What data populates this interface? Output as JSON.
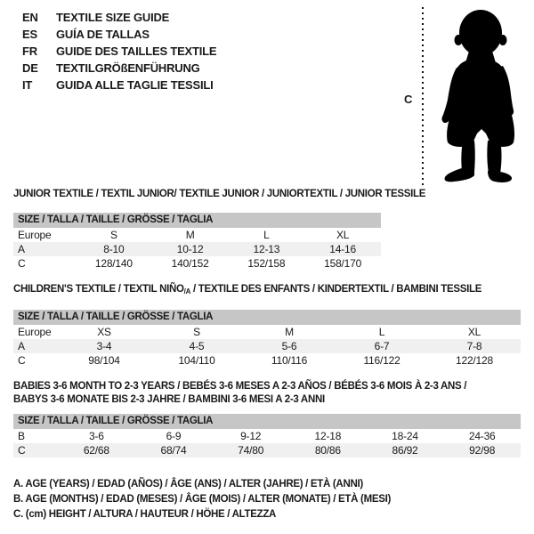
{
  "colors": {
    "header_bg": "#c6c6c6",
    "row_shaded_bg": "#f0f0f0",
    "text": "#1a1a1a",
    "silhouette": "#000000"
  },
  "languages": [
    {
      "code": "EN",
      "text": "TEXTILE SIZE GUIDE"
    },
    {
      "code": "ES",
      "text": "GUÍA DE TALLAS"
    },
    {
      "code": "FR",
      "text": "GUIDE DES TAILLES TEXTILE"
    },
    {
      "code": "DE",
      "text": "TEXTILGRÖßENFÜHRUNG"
    },
    {
      "code": "IT",
      "text": "GUIDA ALLE TAGLIE TESSILI"
    }
  ],
  "figure": {
    "height_label": "C"
  },
  "sections": [
    {
      "title_lines": [
        [
          {
            "text": "JUNIOR TEXTILE / TEXTIL JUNIOR/ TEXTILE JUNIOR / JUNIORTEXTIL / JUNIOR TESSILE"
          }
        ]
      ],
      "size_header": "SIZE / TALLA / TAILLE / GRÖSSE / TAGLIA",
      "rows": [
        {
          "label": "Europe",
          "shaded": false,
          "values": [
            "S",
            "M",
            "L",
            "XL"
          ]
        },
        {
          "label": "A",
          "shaded": true,
          "values": [
            "8-10",
            "10-12",
            "12-13",
            "14-16"
          ]
        },
        {
          "label": "C",
          "shaded": false,
          "values": [
            "128/140",
            "140/152",
            "152/158",
            "158/170"
          ]
        }
      ]
    },
    {
      "title_lines": [
        [
          {
            "text": "CHILDREN'S TEXTILE / TEXTIL NIÑO"
          },
          {
            "text": "/A",
            "sub": true
          },
          {
            "text": " / TEXTILE DES ENFANTS / KINDERTEXTIL / BAMBINI TESSILE"
          }
        ]
      ],
      "size_header": "SIZE / TALLA / TAILLE / GRÖSSE / TAGLIA",
      "rows": [
        {
          "label": "Europe",
          "shaded": false,
          "values": [
            "XS",
            "S",
            "M",
            "L",
            "XL"
          ]
        },
        {
          "label": "A",
          "shaded": true,
          "values": [
            "3-4",
            "4-5",
            "5-6",
            "6-7",
            "7-8"
          ]
        },
        {
          "label": "C",
          "shaded": false,
          "values": [
            "98/104",
            "104/110",
            "110/116",
            "116/122",
            "122/128"
          ]
        }
      ]
    },
    {
      "title_lines": [
        [
          {
            "text": "BABIES 3-6 MONTH TO 2-3 YEARS / BEBÉS 3-6 MESES A 2-3 AÑOS / BÉBÉS 3-6 MOIS À 2-3 ANS /"
          }
        ],
        [
          {
            "text": "BABYS 3-6 MONATE BIS 2-3 JAHRE / BAMBINI 3-6 MESI A 2-3 ANNI"
          }
        ]
      ],
      "size_header": "SIZE / TALLA / TAILLE / GRÖSSE / TAGLIA",
      "rows": [
        {
          "label": "B",
          "shaded": false,
          "values": [
            "3-6",
            "6-9",
            "9-12",
            "12-18",
            "18-24",
            "24-36"
          ]
        },
        {
          "label": "C",
          "shaded": true,
          "values": [
            "62/68",
            "68/74",
            "74/80",
            "80/86",
            "86/92",
            "92/98"
          ]
        }
      ]
    }
  ],
  "legend": [
    "A. AGE (YEARS) / EDAD (AÑOS) / ÂGE (ANS) / ALTER (JAHRE) / ETÀ (ANNI)",
    "B. AGE (MONTHS) / EDAD (MESES) / ÂGE (MOIS) / ALTER (MONATE) / ETÀ (MESI)",
    "C. (cm) HEIGHT / ALTURA / HAUTEUR / HÖHE / ALTEZZA"
  ]
}
